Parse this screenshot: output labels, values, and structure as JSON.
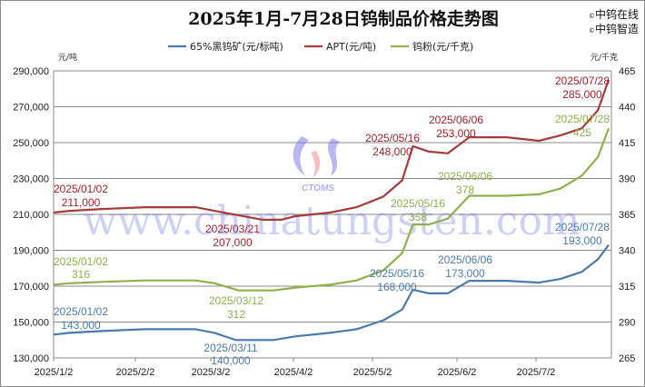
{
  "chart_data": {
    "type": "line",
    "title": "2025年1月-7月28日钨制品价格走势图",
    "brand": [
      "中钨在线",
      "中钨智造"
    ],
    "watermark": "www.chinatungsten.com",
    "watermark_logo": "CTOMS",
    "left_axis": {
      "unit": "元/吨",
      "ticks": [
        "290,000",
        "270,000",
        "250,000",
        "230,000",
        "210,000",
        "190,000",
        "170,000",
        "150,000",
        "130,000"
      ],
      "ylim": [
        130000,
        290000
      ]
    },
    "right_axis": {
      "unit": "元/千克",
      "ticks": [
        "465",
        "440",
        "415",
        "390",
        "365",
        "340",
        "315",
        "290",
        "265"
      ],
      "ylim": [
        265,
        465
      ]
    },
    "x_ticks": [
      "2025/1/2",
      "2025/2/2",
      "2025/3/2",
      "2025/4/2",
      "2025/5/2",
      "2025/6/2",
      "2025/7/2"
    ],
    "grid": true,
    "legend_position": "top",
    "series": [
      {
        "name": "65%黑钨矿(元/标吨)",
        "axis": "left",
        "color": "#4a7ab0",
        "points": [
          [
            "2025/01/02",
            143000
          ],
          [
            "2025/01/08",
            144000
          ],
          [
            "2025/01/20",
            145000
          ],
          [
            "2025/02/05",
            146000
          ],
          [
            "2025/02/24",
            146000
          ],
          [
            "2025/03/03",
            144000
          ],
          [
            "2025/03/11",
            140000
          ],
          [
            "2025/03/25",
            140000
          ],
          [
            "2025/04/02",
            142000
          ],
          [
            "2025/04/15",
            144000
          ],
          [
            "2025/04/25",
            146000
          ],
          [
            "2025/05/05",
            151000
          ],
          [
            "2025/05/12",
            157000
          ],
          [
            "2025/05/16",
            168000
          ],
          [
            "2025/05/22",
            166000
          ],
          [
            "2025/05/29",
            166000
          ],
          [
            "2025/06/06",
            173000
          ],
          [
            "2025/06/20",
            173000
          ],
          [
            "2025/07/02",
            172000
          ],
          [
            "2025/07/10",
            174000
          ],
          [
            "2025/07/18",
            178000
          ],
          [
            "2025/07/24",
            185000
          ],
          [
            "2025/07/28",
            193000
          ]
        ],
        "annotations": [
          {
            "date": "2025/01/02",
            "value": "143,000"
          },
          {
            "date": "2025/03/11",
            "value": "140,000"
          },
          {
            "date": "2025/05/16",
            "value": "168,000"
          },
          {
            "date": "2025/06/06",
            "value": "173,000"
          },
          {
            "date": "2025/07/28",
            "value": "193,000"
          }
        ]
      },
      {
        "name": "APT(元/吨)",
        "axis": "left",
        "color": "#a83a3a",
        "points": [
          [
            "2025/01/02",
            211000
          ],
          [
            "2025/01/08",
            212000
          ],
          [
            "2025/01/20",
            213000
          ],
          [
            "2025/02/05",
            214000
          ],
          [
            "2025/02/24",
            214000
          ],
          [
            "2025/03/03",
            212000
          ],
          [
            "2025/03/21",
            207000
          ],
          [
            "2025/03/28",
            207000
          ],
          [
            "2025/04/02",
            209000
          ],
          [
            "2025/04/15",
            211000
          ],
          [
            "2025/04/25",
            214000
          ],
          [
            "2025/05/05",
            220000
          ],
          [
            "2025/05/12",
            229000
          ],
          [
            "2025/05/16",
            248000
          ],
          [
            "2025/05/22",
            245000
          ],
          [
            "2025/05/29",
            244000
          ],
          [
            "2025/06/06",
            253000
          ],
          [
            "2025/06/20",
            253000
          ],
          [
            "2025/07/02",
            251000
          ],
          [
            "2025/07/10",
            254000
          ],
          [
            "2025/07/18",
            258000
          ],
          [
            "2025/07/24",
            268000
          ],
          [
            "2025/07/28",
            285000
          ]
        ],
        "annotations": [
          {
            "date": "2025/01/02",
            "value": "211,000"
          },
          {
            "date": "2025/03/21",
            "value": "207,000"
          },
          {
            "date": "2025/05/16",
            "value": "248,000"
          },
          {
            "date": "2025/06/06",
            "value": "253,000"
          },
          {
            "date": "2025/07/28",
            "value": "285,000"
          }
        ]
      },
      {
        "name": "钨粉(元/千克)",
        "axis": "right",
        "color": "#8fb04a",
        "points": [
          [
            "2025/01/02",
            316
          ],
          [
            "2025/01/08",
            317
          ],
          [
            "2025/01/20",
            318
          ],
          [
            "2025/02/05",
            319
          ],
          [
            "2025/02/24",
            319
          ],
          [
            "2025/03/03",
            317
          ],
          [
            "2025/03/12",
            312
          ],
          [
            "2025/03/25",
            312
          ],
          [
            "2025/04/02",
            314
          ],
          [
            "2025/04/15",
            316
          ],
          [
            "2025/04/25",
            319
          ],
          [
            "2025/05/05",
            326
          ],
          [
            "2025/05/12",
            338
          ],
          [
            "2025/05/16",
            358
          ],
          [
            "2025/05/22",
            358
          ],
          [
            "2025/05/29",
            362
          ],
          [
            "2025/06/06",
            378
          ],
          [
            "2025/06/20",
            378
          ],
          [
            "2025/07/02",
            379
          ],
          [
            "2025/07/10",
            383
          ],
          [
            "2025/07/18",
            392
          ],
          [
            "2025/07/24",
            405
          ],
          [
            "2025/07/28",
            425
          ]
        ],
        "annotations": [
          {
            "date": "2025/01/02",
            "value": "316"
          },
          {
            "date": "2025/03/12",
            "value": "312"
          },
          {
            "date": "2025/05/16",
            "value": "358"
          },
          {
            "date": "2025/06/06",
            "value": "378"
          },
          {
            "date": "2025/07/28",
            "value": "425"
          }
        ]
      }
    ]
  }
}
